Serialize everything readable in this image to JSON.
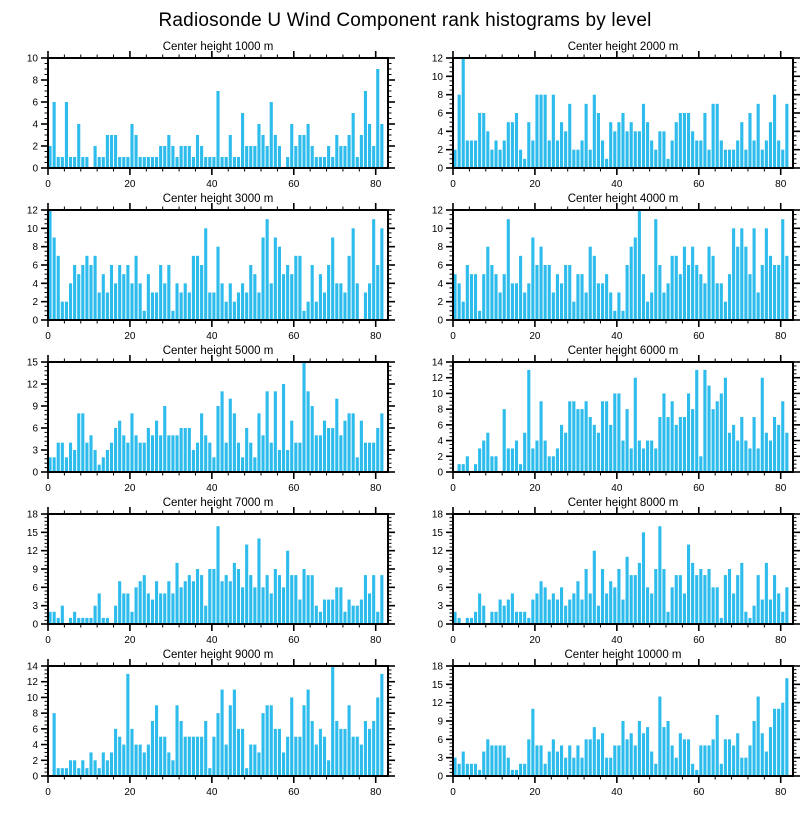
{
  "page": {
    "title": "Radiosonde U Wind Component rank histograms by level"
  },
  "style": {
    "bar_color": "#2EBCEC",
    "axis_color": "#000000",
    "background": "#FFFFFF"
  },
  "chart_data": [
    {
      "type": "bar",
      "title": "Center height 1000 m",
      "ylim": [
        0,
        10
      ],
      "ytick_step": 2,
      "xticks": [
        0,
        20,
        40,
        60,
        80
      ],
      "xminor_step": 4,
      "n_bins": 82,
      "values": [
        2,
        6,
        1,
        1,
        6,
        1,
        1,
        4,
        1,
        1,
        0,
        2,
        1,
        1,
        3,
        3,
        3,
        1,
        1,
        1,
        4,
        3,
        1,
        1,
        1,
        1,
        1,
        2,
        2,
        3,
        2,
        1,
        2,
        2,
        2,
        1,
        3,
        2,
        1,
        1,
        1,
        7,
        1,
        1,
        3,
        1,
        1,
        5,
        2,
        2,
        2,
        4,
        3,
        2,
        6,
        3,
        2,
        0,
        1,
        4,
        2,
        3,
        3,
        4,
        2,
        1,
        1,
        1,
        2,
        1,
        3,
        2,
        2,
        3,
        5,
        1,
        3,
        7,
        4,
        2,
        9,
        4
      ]
    },
    {
      "type": "bar",
      "title": "Center height 2000 m",
      "ylim": [
        0,
        12
      ],
      "ytick_step": 2,
      "xticks": [
        0,
        20,
        40,
        60,
        80
      ],
      "xminor_step": 4,
      "n_bins": 82,
      "values": [
        2,
        8,
        12,
        3,
        3,
        3,
        6,
        6,
        4,
        2,
        3,
        2,
        3,
        5,
        5,
        6,
        2,
        1,
        5,
        3,
        8,
        8,
        8,
        3,
        8,
        3,
        5,
        4,
        7,
        2,
        2,
        3,
        7,
        2,
        8,
        6,
        3,
        1,
        5,
        4,
        5,
        6,
        4,
        5,
        4,
        4,
        7,
        5,
        3,
        2,
        4,
        4,
        1,
        3,
        5,
        6,
        6,
        6,
        4,
        3,
        3,
        6,
        2,
        7,
        7,
        3,
        2,
        2,
        2,
        3,
        5,
        2,
        6,
        3,
        7,
        2,
        3,
        5,
        8,
        3,
        2,
        7
      ]
    },
    {
      "type": "bar",
      "title": "Center height 3000 m",
      "ylim": [
        0,
        12
      ],
      "ytick_step": 2,
      "xticks": [
        0,
        20,
        40,
        60,
        80
      ],
      "xminor_step": 4,
      "n_bins": 82,
      "values": [
        12,
        9,
        7,
        2,
        2,
        4,
        6,
        5,
        6,
        7,
        6,
        7,
        3,
        5,
        3,
        6,
        4,
        6,
        5,
        6,
        4,
        7,
        4,
        1,
        5,
        3,
        3,
        6,
        4,
        6,
        1,
        4,
        3,
        4,
        3,
        7,
        7,
        6,
        10,
        3,
        3,
        8,
        4,
        2,
        4,
        2,
        3,
        4,
        3,
        6,
        5,
        3,
        9,
        11,
        4,
        9,
        8,
        5,
        6,
        5,
        7,
        7,
        1,
        2,
        6,
        2,
        5,
        3,
        6,
        9,
        4,
        4,
        3,
        7,
        10,
        4,
        0,
        3,
        4,
        11,
        6,
        10
      ]
    },
    {
      "type": "bar",
      "title": "Center height 4000 m",
      "ylim": [
        0,
        12
      ],
      "ytick_step": 2,
      "xticks": [
        0,
        20,
        40,
        60,
        80
      ],
      "xminor_step": 4,
      "n_bins": 82,
      "values": [
        5,
        4,
        2,
        6,
        5,
        5,
        1,
        5,
        8,
        6,
        5,
        3,
        5,
        11,
        4,
        4,
        7,
        3,
        4,
        9,
        6,
        8,
        6,
        6,
        3,
        5,
        4,
        6,
        6,
        2,
        5,
        5,
        3,
        8,
        7,
        4,
        4,
        5,
        3,
        1,
        3,
        1,
        6,
        8,
        9,
        12,
        5,
        2,
        3,
        11,
        6,
        3,
        4,
        7,
        7,
        5,
        8,
        6,
        8,
        6,
        5,
        4,
        8,
        7,
        4,
        4,
        2,
        5,
        10,
        8,
        10,
        8,
        5,
        10,
        3,
        6,
        10,
        7,
        6,
        6,
        11,
        7
      ]
    },
    {
      "type": "bar",
      "title": "Center height 5000 m",
      "ylim": [
        0,
        15
      ],
      "ytick_step": 3,
      "xticks": [
        0,
        20,
        40,
        60,
        80
      ],
      "xminor_step": 4,
      "n_bins": 82,
      "values": [
        2,
        2,
        4,
        4,
        2,
        4,
        3,
        8,
        8,
        4,
        5,
        3,
        1,
        2,
        3,
        4,
        6,
        7,
        5,
        4,
        8,
        5,
        4,
        4,
        6,
        5,
        7,
        5,
        9,
        5,
        5,
        5,
        6,
        6,
        6,
        3,
        4,
        8,
        5,
        4,
        2,
        9,
        11,
        4,
        10,
        8,
        4,
        2,
        6,
        4,
        2,
        8,
        5,
        11,
        4,
        11,
        3,
        12,
        3,
        7,
        4,
        4,
        15,
        11,
        9,
        5,
        5,
        7,
        6,
        6,
        10,
        5,
        7,
        8,
        8,
        2,
        7,
        4,
        4,
        4,
        6,
        8
      ]
    },
    {
      "type": "bar",
      "title": "Center height 6000 m",
      "ylim": [
        0,
        14
      ],
      "ytick_step": 2,
      "xticks": [
        0,
        20,
        40,
        60,
        80
      ],
      "xminor_step": 4,
      "n_bins": 82,
      "values": [
        0,
        1,
        1,
        2,
        0,
        1,
        3,
        4,
        5,
        2,
        2,
        0,
        8,
        3,
        3,
        4,
        1,
        5,
        13,
        3,
        4,
        9,
        4,
        2,
        2,
        3,
        6,
        5,
        9,
        9,
        8,
        8,
        9,
        7,
        6,
        5,
        9,
        9,
        6,
        10,
        10,
        4,
        8,
        3,
        12,
        4,
        3,
        4,
        4,
        3,
        7,
        10,
        7,
        9,
        6,
        7,
        7,
        10,
        8,
        13,
        2,
        13,
        11,
        8,
        9,
        10,
        12,
        5,
        6,
        4,
        7,
        4,
        3,
        7,
        3,
        12,
        5,
        4,
        7,
        6,
        9,
        5
      ]
    },
    {
      "type": "bar",
      "title": "Center height 7000 m",
      "ylim": [
        0,
        18
      ],
      "ytick_step": 3,
      "xticks": [
        0,
        20,
        40,
        60,
        80
      ],
      "xminor_step": 4,
      "n_bins": 82,
      "values": [
        2,
        2,
        1,
        3,
        0,
        1,
        2,
        1,
        1,
        1,
        1,
        3,
        5,
        1,
        1,
        0,
        3,
        7,
        5,
        5,
        2,
        6,
        7,
        8,
        5,
        4,
        7,
        5,
        5,
        7,
        5,
        10,
        6,
        7,
        8,
        7,
        9,
        8,
        3,
        9,
        9,
        16,
        7,
        8,
        7,
        10,
        9,
        6,
        13,
        8,
        6,
        14,
        6,
        8,
        5,
        9,
        8,
        6,
        12,
        8,
        8,
        4,
        9,
        8,
        8,
        3,
        2,
        4,
        4,
        4,
        6,
        6,
        2,
        4,
        3,
        3,
        4,
        8,
        5,
        8,
        2,
        8
      ]
    },
    {
      "type": "bar",
      "title": "Center height 8000 m",
      "ylim": [
        0,
        18
      ],
      "ytick_step": 3,
      "xticks": [
        0,
        20,
        40,
        60,
        80
      ],
      "xminor_step": 4,
      "n_bins": 82,
      "values": [
        2,
        1,
        0,
        1,
        1,
        2,
        5,
        3,
        0,
        2,
        2,
        4,
        3,
        4,
        5,
        2,
        2,
        2,
        1,
        4,
        5,
        7,
        6,
        4,
        5,
        4,
        6,
        3,
        4,
        5,
        7,
        4,
        9,
        5,
        12,
        3,
        9,
        5,
        7,
        6,
        9,
        4,
        11,
        8,
        8,
        10,
        15,
        6,
        5,
        9,
        16,
        9,
        2,
        6,
        8,
        8,
        5,
        13,
        10,
        8,
        9,
        8,
        9,
        6,
        6,
        1,
        8,
        9,
        5,
        8,
        10,
        2,
        1,
        3,
        8,
        4,
        10,
        4,
        8,
        5,
        2,
        6
      ]
    },
    {
      "type": "bar",
      "title": "Center height 9000 m",
      "ylim": [
        0,
        14
      ],
      "ytick_step": 2,
      "xticks": [
        0,
        20,
        40,
        60,
        80
      ],
      "xminor_step": 4,
      "n_bins": 82,
      "values": [
        0,
        8,
        1,
        1,
        1,
        2,
        2,
        1,
        2,
        1,
        3,
        2,
        1,
        3,
        2,
        3,
        6,
        5,
        4,
        13,
        6,
        4,
        4,
        3,
        4,
        7,
        9,
        5,
        5,
        3,
        2,
        9,
        7,
        5,
        5,
        5,
        5,
        5,
        7,
        1,
        5,
        8,
        11,
        4,
        9,
        11,
        6,
        6,
        1,
        4,
        4,
        3,
        8,
        9,
        9,
        6,
        6,
        3,
        5,
        10,
        5,
        5,
        9,
        11,
        7,
        4,
        6,
        5,
        2,
        14,
        7,
        6,
        6,
        9,
        5,
        5,
        4,
        7,
        6,
        7,
        10,
        13
      ]
    },
    {
      "type": "bar",
      "title": "Center height 10000 m",
      "ylim": [
        0,
        18
      ],
      "ytick_step": 3,
      "xticks": [
        0,
        20,
        40,
        60,
        80
      ],
      "xminor_step": 4,
      "n_bins": 82,
      "values": [
        3,
        2,
        4,
        2,
        2,
        2,
        1,
        4,
        6,
        5,
        5,
        5,
        5,
        3,
        1,
        1,
        2,
        2,
        6,
        11,
        5,
        5,
        2,
        4,
        6,
        4,
        5,
        3,
        5,
        3,
        5,
        3,
        6,
        6,
        8,
        6,
        7,
        3,
        3,
        5,
        5,
        9,
        6,
        7,
        5,
        9,
        7,
        8,
        4,
        2,
        13,
        8,
        9,
        5,
        3,
        7,
        6,
        6,
        2,
        1,
        5,
        5,
        5,
        6,
        10,
        2,
        6,
        6,
        5,
        7,
        3,
        3,
        5,
        9,
        13,
        7,
        4,
        8,
        11,
        11,
        12,
        16
      ]
    }
  ]
}
